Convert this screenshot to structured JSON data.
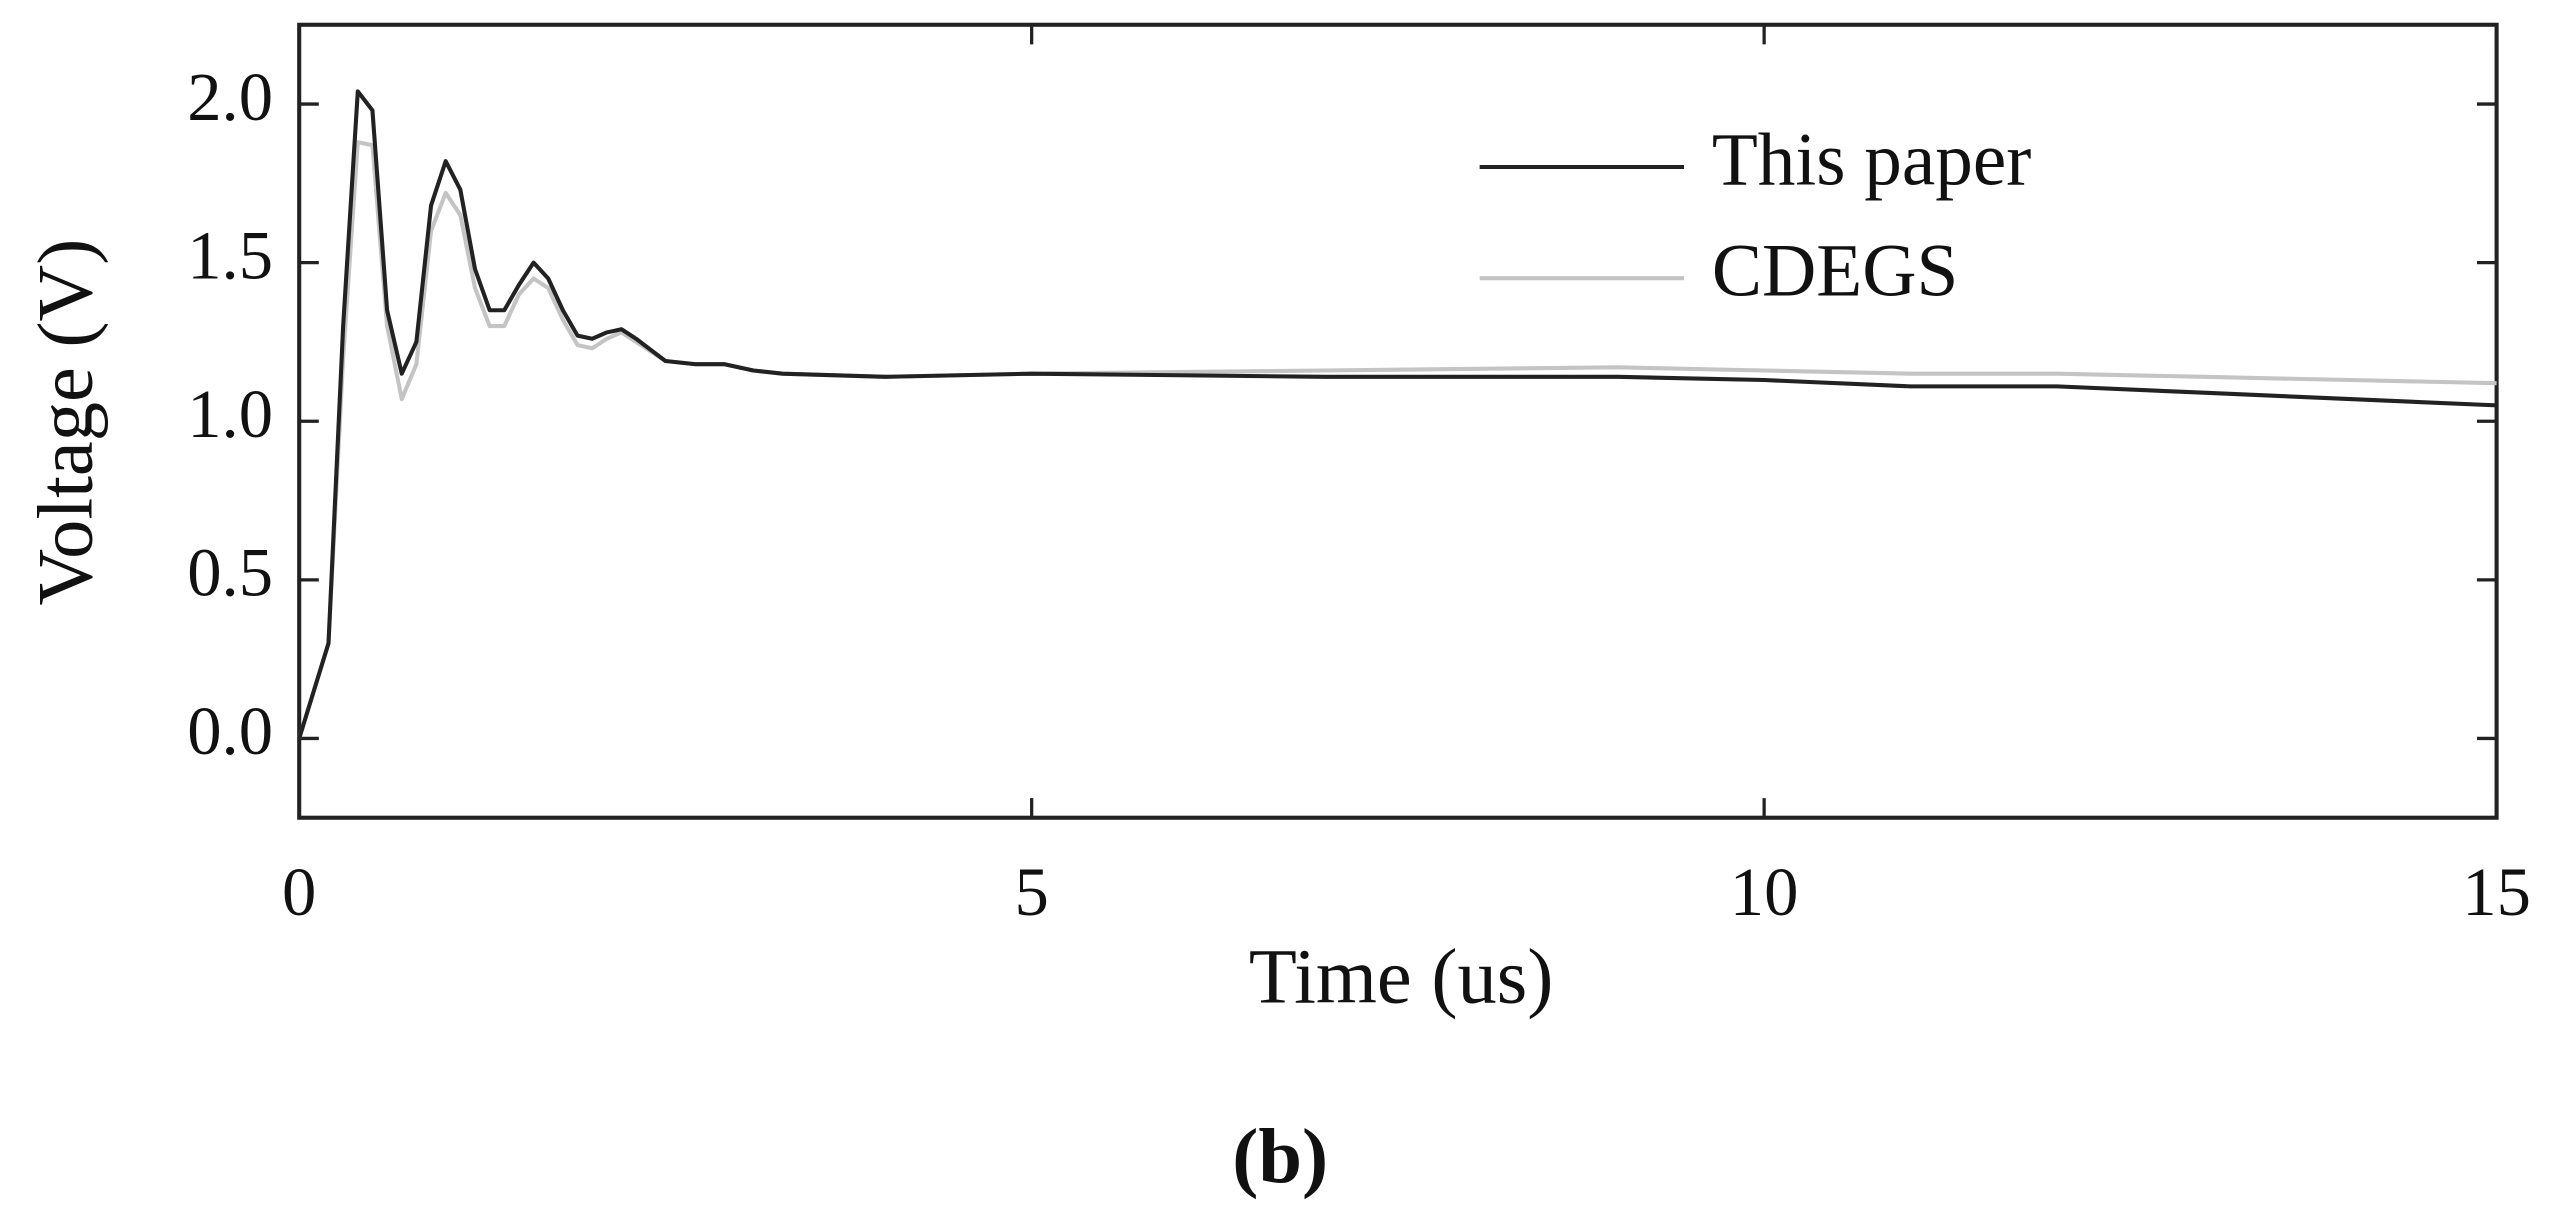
{
  "chart_data": {
    "type": "line",
    "xlabel": "Time (us)",
    "ylabel": "Voltage (V)",
    "caption": "(b)",
    "x": [
      0,
      0.2,
      0.3,
      0.4,
      0.5,
      0.6,
      0.7,
      0.8,
      0.9,
      1.0,
      1.1,
      1.2,
      1.3,
      1.4,
      1.5,
      1.6,
      1.7,
      1.8,
      1.9,
      2.0,
      2.1,
      2.2,
      2.3,
      2.5,
      2.7,
      2.9,
      3.1,
      3.3,
      4,
      5,
      7,
      9,
      10,
      11,
      12,
      13,
      14,
      15
    ],
    "series": [
      {
        "name": "This paper",
        "color": "#222222",
        "values": [
          0,
          0.3,
          1.3,
          2.04,
          1.98,
          1.35,
          1.15,
          1.25,
          1.68,
          1.82,
          1.73,
          1.48,
          1.35,
          1.35,
          1.43,
          1.5,
          1.45,
          1.35,
          1.27,
          1.26,
          1.28,
          1.29,
          1.26,
          1.19,
          1.18,
          1.18,
          1.16,
          1.15,
          1.14,
          1.15,
          1.14,
          1.14,
          1.13,
          1.11,
          1.11,
          1.09,
          1.07,
          1.05
        ]
      },
      {
        "name": "CDEGS",
        "color": "#c4c4c4",
        "values": [
          0,
          0.3,
          1.2,
          1.88,
          1.87,
          1.3,
          1.07,
          1.18,
          1.6,
          1.72,
          1.65,
          1.42,
          1.3,
          1.3,
          1.4,
          1.45,
          1.42,
          1.32,
          1.24,
          1.23,
          1.26,
          1.28,
          1.25,
          1.19,
          1.18,
          1.18,
          1.16,
          1.15,
          1.14,
          1.15,
          1.16,
          1.17,
          1.16,
          1.15,
          1.15,
          1.14,
          1.13,
          1.12
        ]
      }
    ],
    "xlim": [
      0,
      15
    ],
    "xticks": [
      0,
      5,
      10,
      15
    ],
    "ylim": [
      -0.25,
      2.25
    ],
    "yticks": [
      {
        "value": 0,
        "label": "0.0"
      },
      {
        "value": 0.5,
        "label": "0.5"
      },
      {
        "value": 1,
        "label": "1.0"
      },
      {
        "value": 1.5,
        "label": "1.5"
      },
      {
        "value": 2,
        "label": "2.0"
      }
    ],
    "legend": "upper right",
    "grid": false
  }
}
